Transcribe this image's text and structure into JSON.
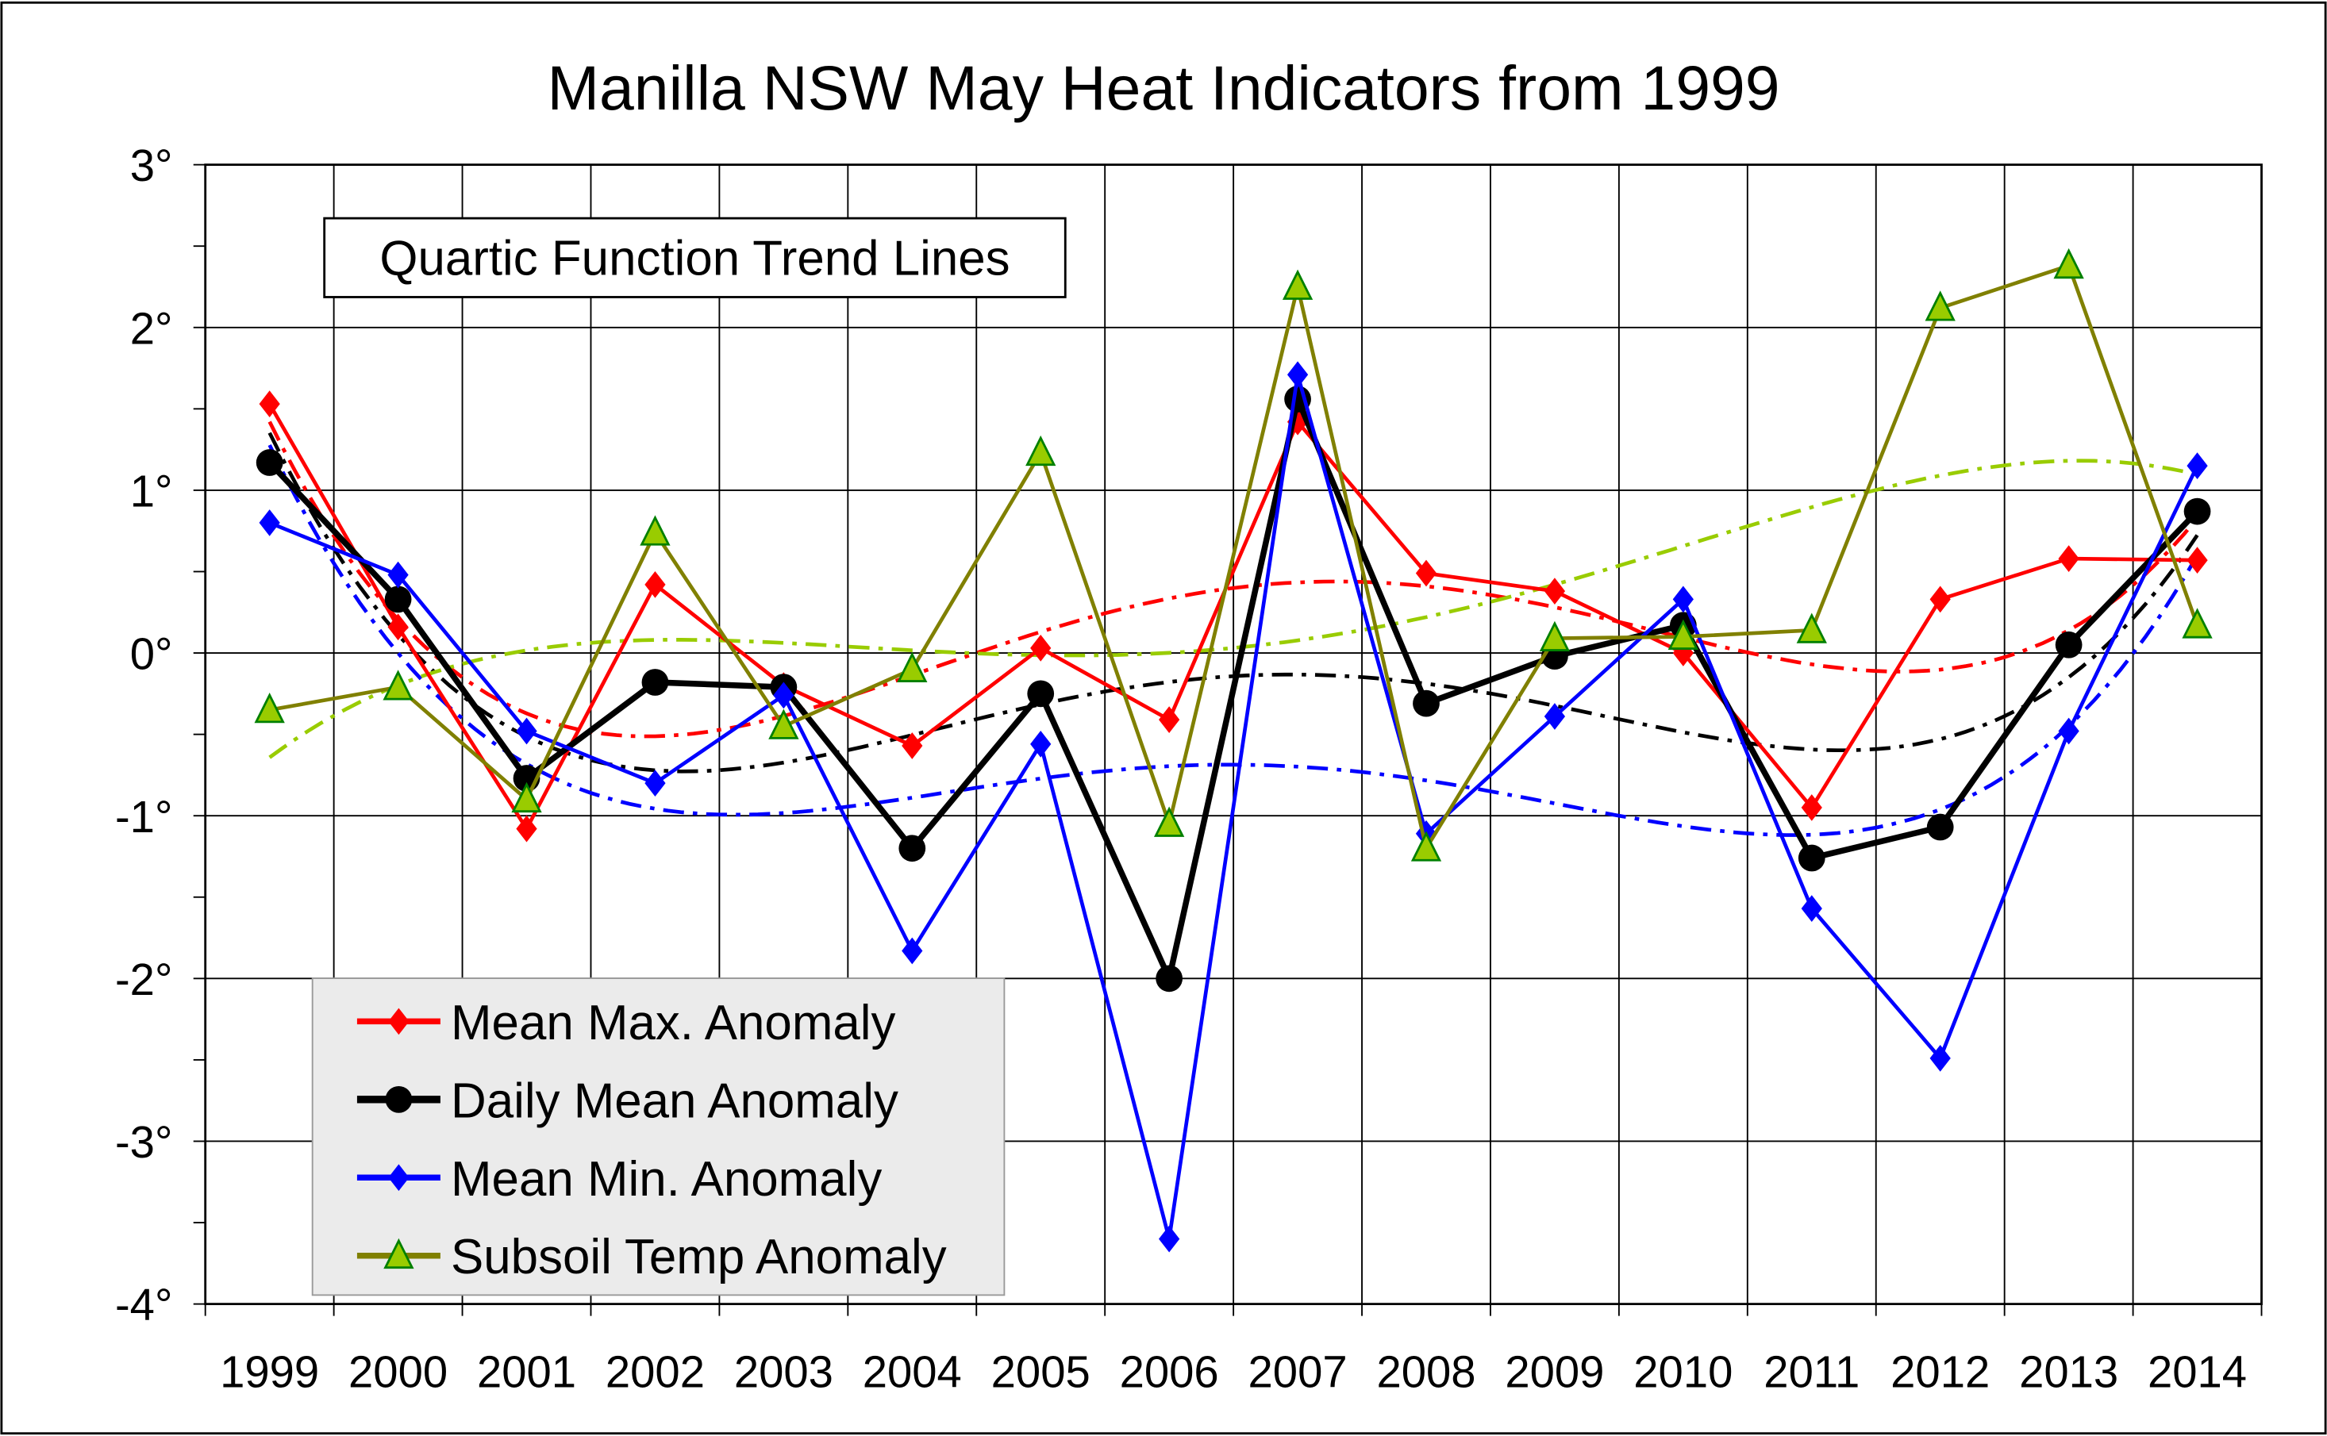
{
  "chart_data": {
    "type": "line",
    "title": "Manilla NSW May Heat Indicators from 1999",
    "annotation": "Quartic Function Trend Lines",
    "xlabel": "",
    "ylabel": "",
    "categories": [
      "1999",
      "2000",
      "2001",
      "2002",
      "2003",
      "2004",
      "2005",
      "2006",
      "2007",
      "2008",
      "2009",
      "2010",
      "2011",
      "2012",
      "2013",
      "2014"
    ],
    "ylim": [
      -4,
      3
    ],
    "yticks": [
      3,
      2,
      1,
      0,
      -1,
      -2,
      -3,
      -4
    ],
    "ytick_labels": [
      "3°",
      "2°",
      "1°",
      "0°",
      "-1°",
      "-2°",
      "-3°",
      "-4°"
    ],
    "grid": true,
    "legend_position": "bottom-left",
    "trendline": "quartic polynomial (dash-dot)",
    "series": [
      {
        "name": "Mean Max. Anomaly",
        "color": "#ff0000",
        "trend_color": "#ff0000",
        "marker": "diamond",
        "values": [
          1.53,
          0.16,
          -1.08,
          0.42,
          -0.2,
          -0.57,
          0.03,
          -0.41,
          1.42,
          0.49,
          0.38,
          0.0,
          -0.95,
          0.33,
          0.58,
          0.57
        ]
      },
      {
        "name": "Daily Mean Anomaly",
        "color": "#000000",
        "trend_color": "#000000",
        "marker": "circle",
        "values": [
          1.17,
          0.33,
          -0.77,
          -0.18,
          -0.21,
          -1.2,
          -0.25,
          -2.0,
          1.56,
          -0.31,
          -0.02,
          0.17,
          -1.26,
          -1.07,
          0.05,
          0.87
        ]
      },
      {
        "name": "Mean Min. Anomaly",
        "color": "#0000ff",
        "trend_color": "#0000ff",
        "marker": "diamond",
        "values": [
          0.8,
          0.48,
          -0.48,
          -0.8,
          -0.26,
          -1.83,
          -0.56,
          -3.6,
          1.71,
          -1.11,
          -0.39,
          0.33,
          -1.57,
          -2.49,
          -0.48,
          1.15
        ]
      },
      {
        "name": "Subsoil Temp Anomaly",
        "color": "#808000",
        "trend_color": "#99cc00",
        "marker": "triangle",
        "values": [
          -0.35,
          -0.21,
          -0.9,
          0.74,
          -0.45,
          -0.1,
          1.23,
          -1.05,
          2.25,
          -1.2,
          0.09,
          0.1,
          0.14,
          2.12,
          2.38,
          0.17
        ]
      }
    ]
  }
}
